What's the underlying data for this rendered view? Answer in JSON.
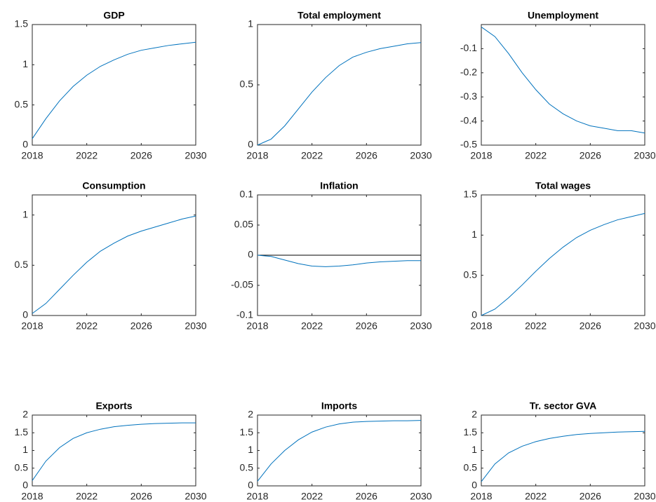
{
  "chart_data": [
    {
      "type": "line",
      "title": "GDP",
      "x": [
        2018,
        2019,
        2020,
        2021,
        2022,
        2023,
        2024,
        2025,
        2026,
        2027,
        2028,
        2029,
        2030
      ],
      "values": [
        0.08,
        0.33,
        0.55,
        0.73,
        0.87,
        0.98,
        1.06,
        1.13,
        1.18,
        1.21,
        1.24,
        1.26,
        1.28
      ],
      "color": "#0072bd",
      "xlim": [
        2018,
        2030
      ],
      "xticks": [
        2018,
        2022,
        2026,
        2030
      ],
      "ylim": [
        0,
        1.5
      ],
      "yticks": [
        0,
        0.5,
        1,
        1.5
      ]
    },
    {
      "type": "line",
      "title": "Total employment",
      "x": [
        2018,
        2019,
        2020,
        2021,
        2022,
        2023,
        2024,
        2025,
        2026,
        2027,
        2028,
        2029,
        2030
      ],
      "values": [
        0,
        0.05,
        0.16,
        0.3,
        0.44,
        0.56,
        0.66,
        0.73,
        0.77,
        0.8,
        0.82,
        0.84,
        0.85
      ],
      "color": "#0072bd",
      "xlim": [
        2018,
        2030
      ],
      "xticks": [
        2018,
        2022,
        2026,
        2030
      ],
      "ylim": [
        0,
        1
      ],
      "yticks": [
        0,
        0.5,
        1
      ]
    },
    {
      "type": "line",
      "title": "Unemployment",
      "x": [
        2018,
        2019,
        2020,
        2021,
        2022,
        2023,
        2024,
        2025,
        2026,
        2027,
        2028,
        2029,
        2030
      ],
      "values": [
        -0.01,
        -0.05,
        -0.12,
        -0.2,
        -0.27,
        -0.33,
        -0.37,
        -0.4,
        -0.42,
        -0.43,
        -0.44,
        -0.44,
        -0.45
      ],
      "color": "#0072bd",
      "xlim": [
        2018,
        2030
      ],
      "xticks": [
        2018,
        2022,
        2026,
        2030
      ],
      "ylim": [
        -0.5,
        0
      ],
      "yticks": [
        -0.5,
        -0.4,
        -0.3,
        -0.2,
        -0.1
      ]
    },
    {
      "type": "line",
      "title": "Consumption",
      "x": [
        2018,
        2019,
        2020,
        2021,
        2022,
        2023,
        2024,
        2025,
        2026,
        2027,
        2028,
        2029,
        2030
      ],
      "values": [
        0.02,
        0.12,
        0.26,
        0.4,
        0.53,
        0.64,
        0.72,
        0.79,
        0.84,
        0.88,
        0.92,
        0.96,
        0.99
      ],
      "color": "#0072bd",
      "xlim": [
        2018,
        2030
      ],
      "xticks": [
        2018,
        2022,
        2026,
        2030
      ],
      "ylim": [
        0,
        1.2
      ],
      "yticks": [
        0,
        0.5,
        1
      ]
    },
    {
      "type": "line",
      "title": "Inflation",
      "x": [
        2018,
        2019,
        2020,
        2021,
        2022,
        2023,
        2024,
        2025,
        2026,
        2027,
        2028,
        2029,
        2030
      ],
      "values": [
        0,
        -0.002,
        -0.008,
        -0.014,
        -0.018,
        -0.019,
        -0.018,
        -0.016,
        -0.013,
        -0.011,
        -0.01,
        -0.009,
        -0.009
      ],
      "color": "#0072bd",
      "hline": 0,
      "xlim": [
        2018,
        2030
      ],
      "xticks": [
        2018,
        2022,
        2026,
        2030
      ],
      "ylim": [
        -0.1,
        0.1
      ],
      "yticks": [
        -0.1,
        -0.05,
        0,
        0.05,
        0.1
      ]
    },
    {
      "type": "line",
      "title": "Total wages",
      "x": [
        2018,
        2019,
        2020,
        2021,
        2022,
        2023,
        2024,
        2025,
        2026,
        2027,
        2028,
        2029,
        2030
      ],
      "values": [
        0,
        0.08,
        0.22,
        0.38,
        0.55,
        0.71,
        0.85,
        0.97,
        1.06,
        1.13,
        1.19,
        1.23,
        1.27
      ],
      "color": "#0072bd",
      "xlim": [
        2018,
        2030
      ],
      "xticks": [
        2018,
        2022,
        2026,
        2030
      ],
      "ylim": [
        0,
        1.5
      ],
      "yticks": [
        0,
        0.5,
        1,
        1.5
      ]
    },
    {
      "type": "line",
      "title": "Exports",
      "x": [
        2018,
        2019,
        2020,
        2021,
        2022,
        2023,
        2024,
        2025,
        2026,
        2027,
        2028,
        2029,
        2030
      ],
      "values": [
        0.15,
        0.7,
        1.08,
        1.34,
        1.5,
        1.6,
        1.67,
        1.71,
        1.74,
        1.76,
        1.77,
        1.78,
        1.78
      ],
      "color": "#0072bd",
      "xlim": [
        2018,
        2030
      ],
      "xticks": [
        2018,
        2022,
        2026,
        2030
      ],
      "ylim": [
        0,
        2
      ],
      "yticks": [
        0,
        0.5,
        1,
        1.5,
        2
      ]
    },
    {
      "type": "line",
      "title": "Imports",
      "x": [
        2018,
        2019,
        2020,
        2021,
        2022,
        2023,
        2024,
        2025,
        2026,
        2027,
        2028,
        2029,
        2030
      ],
      "values": [
        0.13,
        0.62,
        1.0,
        1.3,
        1.52,
        1.66,
        1.75,
        1.8,
        1.82,
        1.83,
        1.84,
        1.84,
        1.85
      ],
      "color": "#0072bd",
      "xlim": [
        2018,
        2030
      ],
      "xticks": [
        2018,
        2022,
        2026,
        2030
      ],
      "ylim": [
        0,
        2
      ],
      "yticks": [
        0,
        0.5,
        1,
        1.5,
        2
      ]
    },
    {
      "type": "line",
      "title": "Tr. sector GVA",
      "x": [
        2018,
        2019,
        2020,
        2021,
        2022,
        2023,
        2024,
        2025,
        2026,
        2027,
        2028,
        2029,
        2030
      ],
      "values": [
        0.12,
        0.62,
        0.93,
        1.12,
        1.25,
        1.34,
        1.4,
        1.45,
        1.48,
        1.5,
        1.52,
        1.53,
        1.54
      ],
      "color": "#0072bd",
      "xlim": [
        2018,
        2030
      ],
      "xticks": [
        2018,
        2022,
        2026,
        2030
      ],
      "ylim": [
        0,
        2
      ],
      "yticks": [
        0,
        0.5,
        1,
        1.5,
        2
      ]
    }
  ]
}
